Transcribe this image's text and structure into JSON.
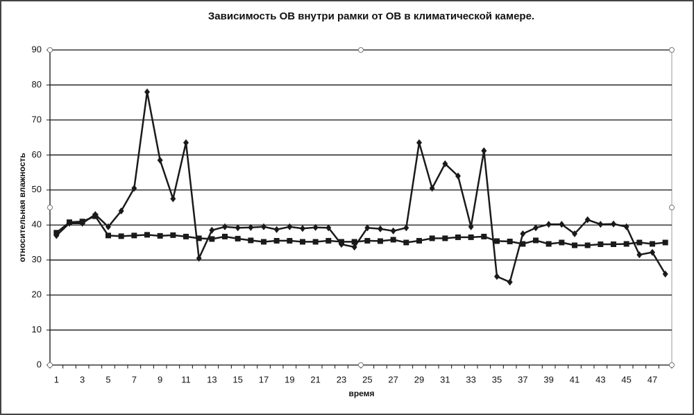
{
  "chart_data": {
    "type": "line",
    "title": "Зависимость ОВ внутри рамки от ОВ в климатической камере.",
    "x_label": "время",
    "y_label": "относительная влажность",
    "categories": [
      "1",
      null,
      "3",
      null,
      "5",
      null,
      "7",
      null,
      "9",
      null,
      "11",
      null,
      "13",
      null,
      "15",
      null,
      "17",
      null,
      "19",
      null,
      "21",
      null,
      "23",
      null,
      "25",
      null,
      "27",
      null,
      "29",
      null,
      "31",
      null,
      "33",
      null,
      "35",
      null,
      "37",
      null,
      "39",
      null,
      "41",
      null,
      "43",
      null,
      "45",
      null,
      "47",
      null
    ],
    "series": [
      {
        "color": "#1a1a1a",
        "marker": "diamond",
        "values": [
          37,
          40.5,
          40.5,
          43,
          39.5,
          44,
          50.5,
          78,
          58.5,
          47.5,
          63.5,
          30.5,
          38.5,
          39.5,
          39.2,
          39.3,
          39.5,
          38.7,
          39.5,
          39,
          39.3,
          39.2,
          34.5,
          33.7,
          39.2,
          38.9,
          38.3,
          39.2,
          63.5,
          50.5,
          57.5,
          54,
          39.5,
          61.2,
          25.3,
          23.7,
          37.5,
          39.2,
          40.2,
          40.2,
          37.5,
          41.5,
          40.2,
          40.3,
          39.5,
          31.5,
          32.2,
          26
        ]
      },
      {
        "color": "#1a1a1a",
        "marker": "square",
        "values": [
          37.8,
          40.8,
          41,
          42.5,
          37,
          36.8,
          37,
          37.2,
          36.9,
          37.1,
          36.7,
          36.2,
          36,
          36.7,
          36.1,
          35.6,
          35.2,
          35.5,
          35.5,
          35.2,
          35.2,
          35.5,
          35.2,
          35.2,
          35.5,
          35.4,
          35.8,
          35,
          35.5,
          36.2,
          36.2,
          36.5,
          36.5,
          36.7,
          35.4,
          35.3,
          34.6,
          35.6,
          34.6,
          35,
          34.2,
          34.2,
          34.5,
          34.5,
          34.6,
          35,
          34.6,
          35
        ]
      }
    ],
    "ylim": [
      0,
      90
    ],
    "yticks": [
      0,
      10,
      20,
      30,
      40,
      50,
      60,
      70,
      80,
      90
    ],
    "grid": true
  }
}
